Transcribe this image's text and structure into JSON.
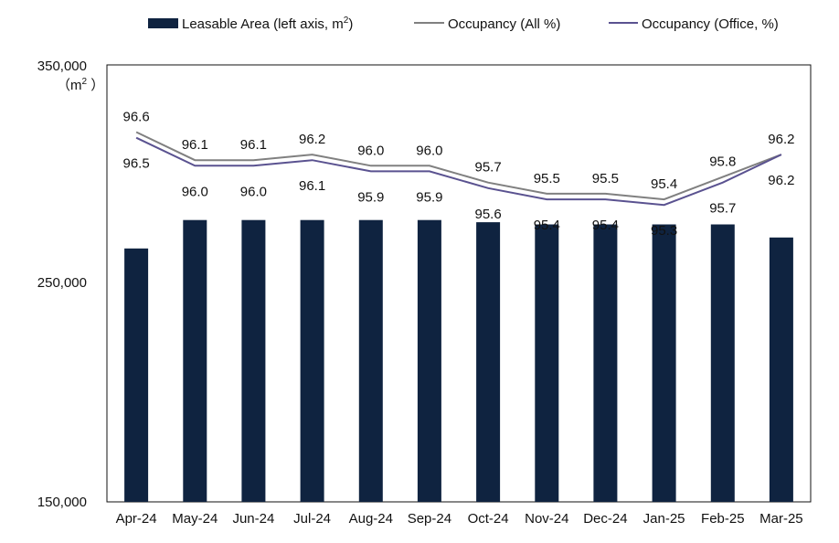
{
  "chart_data": {
    "type": "bar",
    "categories": [
      "Apr-24",
      "May-24",
      "Jun-24",
      "Jul-24",
      "Aug-24",
      "Sep-24",
      "Oct-24",
      "Nov-24",
      "Dec-24",
      "Jan-25",
      "Feb-25",
      "Mar-25"
    ],
    "y_axis": {
      "ylim": [
        150000,
        350000
      ],
      "ticks": [
        "150,000",
        "250,000",
        "350,000"
      ],
      "unit_label": "（m",
      "unit_superscript": "2",
      "unit_suffix": " ）"
    },
    "right_axis": {
      "ylim": [
        90.0,
        97.8
      ],
      "visible": false
    },
    "bars": {
      "name": "Leasable Area (left axis, m",
      "name_superscript": "2",
      "name_suffix": ")",
      "color": "#0f2340",
      "values": [
        266000,
        279000,
        279000,
        279000,
        279000,
        279000,
        278000,
        277000,
        277000,
        277000,
        277000,
        271000
      ]
    },
    "series": [
      {
        "name": "Occupancy (All %)",
        "color": "#808080",
        "values": [
          96.6,
          96.1,
          96.1,
          96.2,
          96.0,
          96.0,
          95.7,
          95.5,
          95.5,
          95.4,
          95.8,
          96.2
        ]
      },
      {
        "name": "Occupancy (Office, %)",
        "color": "#5a5290",
        "values": [
          96.5,
          96.0,
          96.0,
          96.1,
          95.9,
          95.9,
          95.6,
          95.4,
          95.4,
          95.3,
          95.7,
          96.2
        ]
      }
    ],
    "legend_position": "top",
    "grid": false
  }
}
